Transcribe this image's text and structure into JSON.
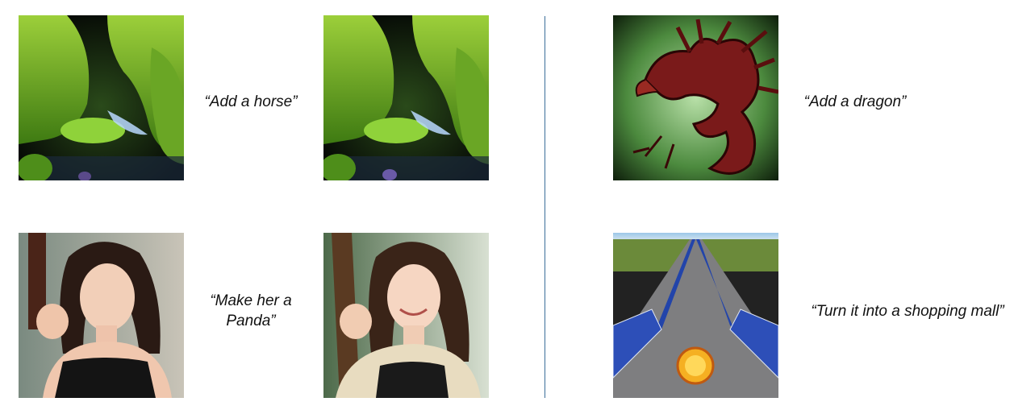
{
  "panels": {
    "horse": {
      "prompt": "“Add a horse”",
      "input_image": "mossy-canyon-stream-input",
      "output_image": "mossy-canyon-stream-output"
    },
    "panda": {
      "prompt_line1": "“Make her a",
      "prompt_line2": "Panda”",
      "input_image": "woman-portrait-input",
      "output_image": "woman-portrait-output"
    },
    "dragon": {
      "prompt": "“Add a dragon”",
      "output_image": "red-dragon-on-green"
    },
    "mall": {
      "prompt": "“Turn it into a shopping mall”",
      "output_image": "solar-panel-road"
    }
  },
  "colors": {
    "divider": "#3c6e99",
    "text": "#111111"
  }
}
